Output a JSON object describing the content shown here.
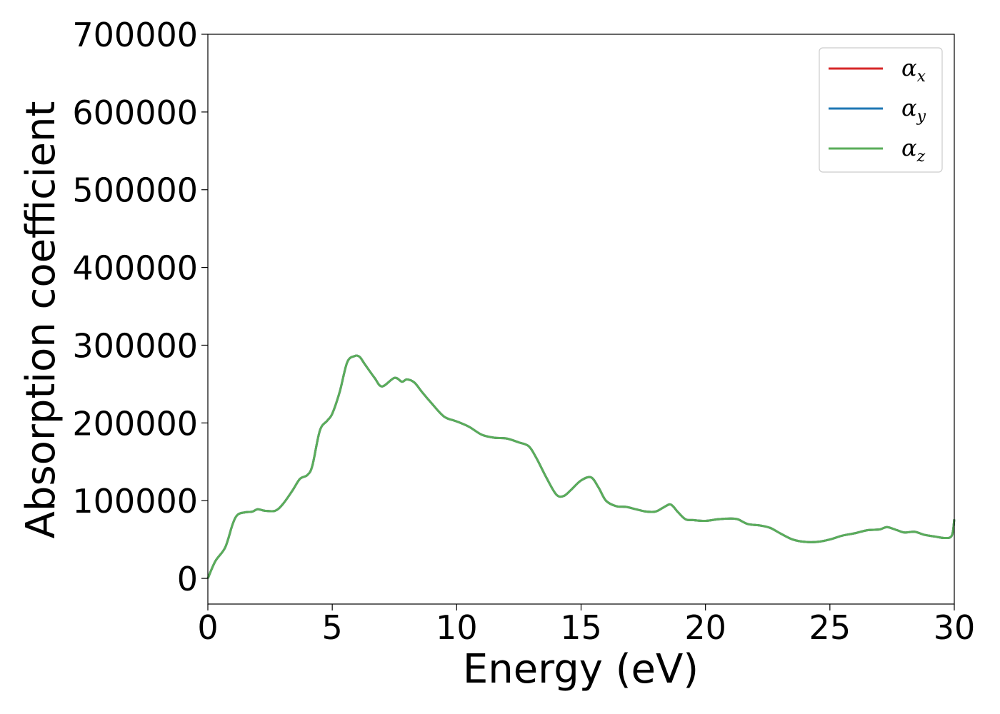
{
  "chart_data": {
    "type": "line",
    "title": "",
    "xlabel": "Energy (eV)",
    "ylabel": "Absorption coefficient",
    "xlim": [
      0,
      30
    ],
    "ylim": [
      -33000,
      700000
    ],
    "xticks": [
      "0",
      "5",
      "10",
      "15",
      "20",
      "25",
      "30"
    ],
    "yticks": [
      "0",
      "100000",
      "200000",
      "300000",
      "400000",
      "500000",
      "600000",
      "700000"
    ],
    "legend": {
      "placement": "top-right"
    },
    "grid": false,
    "series": [
      {
        "name": "α",
        "sub": "x",
        "color": "#d62728",
        "x": [
          0,
          0.3,
          0.7,
          1.0,
          1.2,
          1.5,
          1.8,
          2.0,
          2.3,
          2.7,
          3.0,
          3.4,
          3.7,
          4.0,
          4.2,
          4.5,
          4.8,
          5.0,
          5.3,
          5.6,
          5.9,
          6.1,
          6.3,
          6.7,
          7.0,
          7.5,
          7.8,
          8.0,
          8.3,
          8.6,
          9.0,
          9.5,
          10.0,
          10.5,
          11.0,
          11.5,
          12.0,
          12.5,
          12.9,
          13.2,
          13.6,
          14.0,
          14.3,
          14.6,
          15.0,
          15.4,
          15.7,
          16.0,
          16.4,
          16.8,
          17.2,
          17.6,
          18.0,
          18.3,
          18.6,
          18.9,
          19.2,
          19.5,
          20.0,
          20.5,
          21.0,
          21.3,
          21.7,
          22.2,
          22.6,
          23.0,
          23.5,
          24.0,
          24.5,
          25.0,
          25.5,
          26.0,
          26.5,
          27.0,
          27.3,
          27.7,
          28.0,
          28.4,
          28.8,
          29.2,
          29.6,
          29.9,
          30.0
        ],
        "y": [
          0,
          22000,
          40000,
          70000,
          82000,
          85000,
          86000,
          89000,
          87000,
          87000,
          95000,
          113000,
          128000,
          133000,
          145000,
          190000,
          203000,
          212000,
          240000,
          278000,
          286000,
          285000,
          276000,
          258000,
          247000,
          258000,
          253000,
          256000,
          252000,
          240000,
          225000,
          208000,
          202000,
          195000,
          185000,
          181000,
          180000,
          175000,
          170000,
          155000,
          130000,
          108000,
          106000,
          114000,
          126000,
          130000,
          117000,
          100000,
          93000,
          92000,
          89000,
          86000,
          86000,
          91000,
          95000,
          85000,
          76000,
          75000,
          74000,
          76000,
          77000,
          76000,
          70000,
          68000,
          65000,
          58000,
          50000,
          47000,
          47000,
          50000,
          55000,
          58000,
          62000,
          63000,
          66000,
          62000,
          59000,
          60000,
          56000,
          54000,
          52000,
          55000,
          76000
        ]
      },
      {
        "name": "α",
        "sub": "y",
        "color": "#1f77b4",
        "x": [
          0,
          0.3,
          0.7,
          1.0,
          1.2,
          1.5,
          1.8,
          2.0,
          2.3,
          2.7,
          3.0,
          3.4,
          3.7,
          4.0,
          4.2,
          4.5,
          4.8,
          5.0,
          5.3,
          5.6,
          5.9,
          6.1,
          6.3,
          6.7,
          7.0,
          7.5,
          7.8,
          8.0,
          8.3,
          8.6,
          9.0,
          9.5,
          10.0,
          10.5,
          11.0,
          11.5,
          12.0,
          12.5,
          12.9,
          13.2,
          13.6,
          14.0,
          14.3,
          14.6,
          15.0,
          15.4,
          15.7,
          16.0,
          16.4,
          16.8,
          17.2,
          17.6,
          18.0,
          18.3,
          18.6,
          18.9,
          19.2,
          19.5,
          20.0,
          20.5,
          21.0,
          21.3,
          21.7,
          22.2,
          22.6,
          23.0,
          23.5,
          24.0,
          24.5,
          25.0,
          25.5,
          26.0,
          26.5,
          27.0,
          27.3,
          27.7,
          28.0,
          28.4,
          28.8,
          29.2,
          29.6,
          29.9,
          30.0
        ],
        "y": [
          0,
          22000,
          40000,
          70000,
          82000,
          85000,
          86000,
          89000,
          87000,
          87000,
          95000,
          113000,
          128000,
          133000,
          145000,
          190000,
          203000,
          212000,
          240000,
          278000,
          286000,
          285000,
          276000,
          258000,
          247000,
          258000,
          253000,
          256000,
          252000,
          240000,
          225000,
          208000,
          202000,
          195000,
          185000,
          181000,
          180000,
          175000,
          170000,
          155000,
          130000,
          108000,
          106000,
          114000,
          126000,
          130000,
          117000,
          100000,
          93000,
          92000,
          89000,
          86000,
          86000,
          91000,
          95000,
          85000,
          76000,
          75000,
          74000,
          76000,
          77000,
          76000,
          70000,
          68000,
          65000,
          58000,
          50000,
          47000,
          47000,
          50000,
          55000,
          58000,
          62000,
          63000,
          66000,
          62000,
          59000,
          60000,
          56000,
          54000,
          52000,
          55000,
          76000
        ]
      },
      {
        "name": "α",
        "sub": "z",
        "color": "#5aad5a",
        "x": [
          0,
          0.3,
          0.7,
          1.0,
          1.2,
          1.5,
          1.8,
          2.0,
          2.3,
          2.7,
          3.0,
          3.4,
          3.7,
          4.0,
          4.2,
          4.5,
          4.8,
          5.0,
          5.3,
          5.6,
          5.9,
          6.1,
          6.3,
          6.7,
          7.0,
          7.5,
          7.8,
          8.0,
          8.3,
          8.6,
          9.0,
          9.5,
          10.0,
          10.5,
          11.0,
          11.5,
          12.0,
          12.5,
          12.9,
          13.2,
          13.6,
          14.0,
          14.3,
          14.6,
          15.0,
          15.4,
          15.7,
          16.0,
          16.4,
          16.8,
          17.2,
          17.6,
          18.0,
          18.3,
          18.6,
          18.9,
          19.2,
          19.5,
          20.0,
          20.5,
          21.0,
          21.3,
          21.7,
          22.2,
          22.6,
          23.0,
          23.5,
          24.0,
          24.5,
          25.0,
          25.5,
          26.0,
          26.5,
          27.0,
          27.3,
          27.7,
          28.0,
          28.4,
          28.8,
          29.2,
          29.6,
          29.9,
          30.0
        ],
        "y": [
          0,
          22000,
          40000,
          70000,
          82000,
          85000,
          86000,
          89000,
          87000,
          87000,
          95000,
          113000,
          128000,
          133000,
          145000,
          190000,
          203000,
          212000,
          240000,
          278000,
          286000,
          285000,
          276000,
          258000,
          247000,
          258000,
          253000,
          256000,
          252000,
          240000,
          225000,
          208000,
          202000,
          195000,
          185000,
          181000,
          180000,
          175000,
          170000,
          155000,
          130000,
          108000,
          106000,
          114000,
          126000,
          130000,
          117000,
          100000,
          93000,
          92000,
          89000,
          86000,
          86000,
          91000,
          95000,
          85000,
          76000,
          75000,
          74000,
          76000,
          77000,
          76000,
          70000,
          68000,
          65000,
          58000,
          50000,
          47000,
          47000,
          50000,
          55000,
          58000,
          62000,
          63000,
          66000,
          62000,
          59000,
          60000,
          56000,
          54000,
          52000,
          55000,
          76000
        ]
      }
    ]
  }
}
